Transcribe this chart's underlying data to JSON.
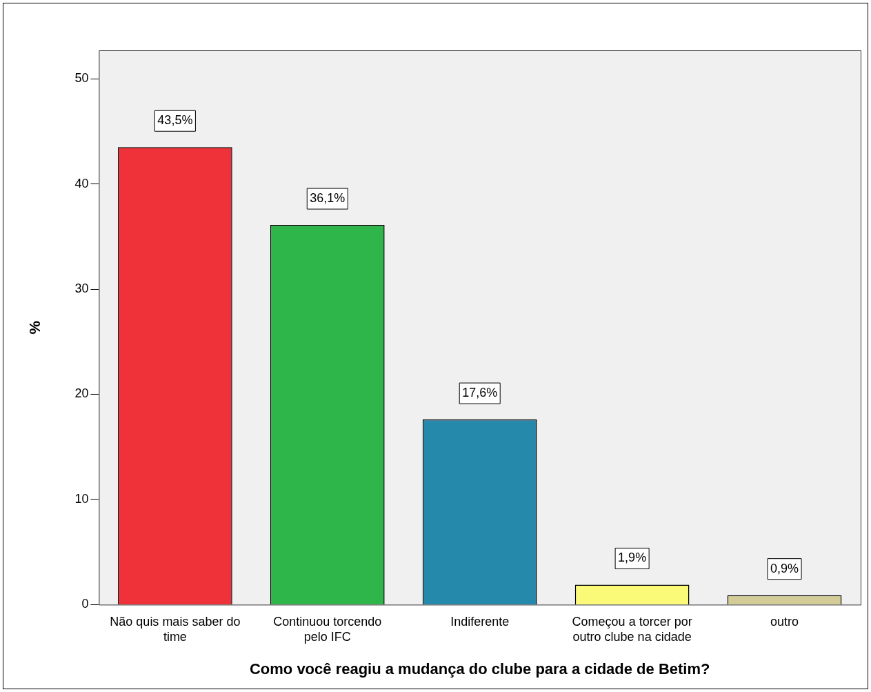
{
  "chart_data": {
    "type": "bar",
    "xlabel": "Como você reagiu a mudança do clube para a cidade de Betim?",
    "ylabel": "%",
    "categories": [
      "Não quis mais saber do time",
      "Continuou torcendo pelo IFC",
      "Indiferente",
      "Começou a torcer por outro clube na cidade",
      "outro"
    ],
    "values": [
      43.5,
      36.1,
      17.6,
      1.9,
      0.9
    ],
    "value_labels": [
      "43,5%",
      "36,1%",
      "17,6%",
      "1,9%",
      "0,9%"
    ],
    "colors": [
      "#ef3239",
      "#2fb64a",
      "#2589ac",
      "#fafa78",
      "#d4cc96"
    ],
    "ylim": [
      0,
      52.7
    ],
    "yticks": [
      0,
      10,
      20,
      30,
      40,
      50
    ],
    "grid": false,
    "legend": false
  }
}
